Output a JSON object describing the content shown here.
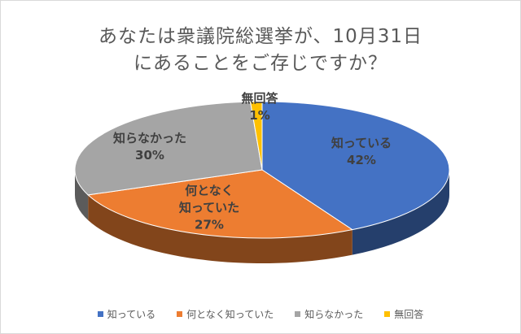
{
  "chart_data": {
    "type": "pie",
    "title_lines": [
      "あなたは衆議院総選挙が、10月31日",
      "にあることをご存じですか？"
    ],
    "categories": [
      "知っている",
      "何となく知っていた",
      "知らなかった",
      "無回答"
    ],
    "slice_labels": [
      [
        "知っている"
      ],
      [
        "何となく",
        "知っていた"
      ],
      [
        "知らなかった"
      ],
      [
        "無回答"
      ]
    ],
    "values": [
      42,
      27,
      30,
      1
    ],
    "value_labels": [
      "42%",
      "27%",
      "30%",
      "1%"
    ],
    "colors": [
      "#4472c4",
      "#ed7d31",
      "#a5a5a5",
      "#ffc000"
    ],
    "legend_position": "bottom",
    "3d": true
  }
}
